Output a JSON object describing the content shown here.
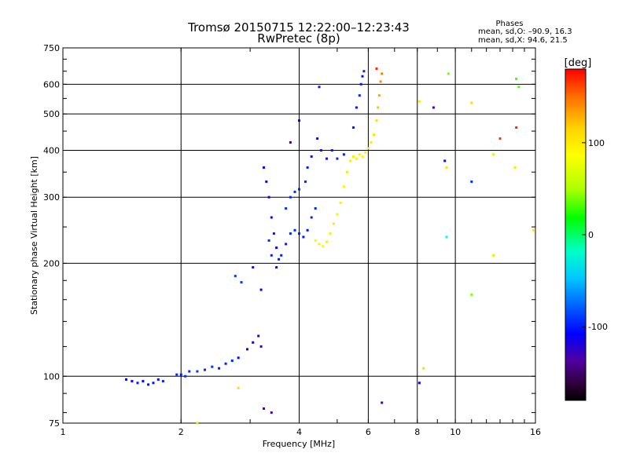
{
  "chart_data": {
    "type": "scatter",
    "title": "Tromsø 20150715 12:22:00–12:23:43",
    "subtitle": "RwPretec (8p)",
    "info": {
      "heading": "Phases",
      "line1": "mean, sd,O: –90.9, 16.3",
      "line2": "mean, sd,X:  94.6, 21.5"
    },
    "xlabel": "Frequency [MHz]",
    "ylabel": "Stationary phase Virtual Height [km]",
    "x_scale": "log2",
    "y_scale": "log",
    "xlim": [
      1,
      16
    ],
    "ylim": [
      75,
      750
    ],
    "x_ticks": [
      1,
      2,
      4,
      6,
      8,
      10,
      16
    ],
    "y_ticks": [
      75,
      100,
      200,
      300,
      400,
      500,
      600,
      750
    ],
    "grid": true,
    "colorbar": {
      "label": "[deg]",
      "range": [
        -180,
        180
      ],
      "ticks": [
        100,
        0,
        -100
      ]
    },
    "series": [
      {
        "mode": "O",
        "phase_mean": -90.9,
        "points": [
          [
            1.45,
            98,
            -105
          ],
          [
            1.5,
            97,
            -110
          ],
          [
            1.55,
            96,
            -100
          ],
          [
            1.6,
            97,
            -108
          ],
          [
            1.65,
            95,
            -104
          ],
          [
            1.7,
            96,
            -102
          ],
          [
            1.75,
            98,
            -100
          ],
          [
            1.8,
            97,
            -98
          ],
          [
            1.95,
            101,
            -95
          ],
          [
            2.0,
            101,
            -100
          ],
          [
            2.05,
            100,
            -92
          ],
          [
            2.1,
            103,
            -96
          ],
          [
            2.2,
            103,
            -90
          ],
          [
            2.3,
            104,
            -95
          ],
          [
            2.4,
            106,
            -92
          ],
          [
            2.5,
            105,
            -100
          ],
          [
            2.6,
            108,
            -98
          ],
          [
            2.7,
            110,
            -96
          ],
          [
            2.8,
            112,
            -105
          ],
          [
            2.75,
            185,
            -88
          ],
          [
            2.85,
            178,
            -92
          ],
          [
            3.05,
            195,
            -120
          ],
          [
            3.2,
            170,
            -110
          ],
          [
            2.95,
            118,
            -115
          ],
          [
            3.05,
            123,
            -112
          ],
          [
            3.15,
            128,
            -120
          ],
          [
            3.2,
            120,
            -125
          ],
          [
            3.25,
            82,
            -135
          ],
          [
            3.4,
            80,
            -140
          ],
          [
            3.25,
            360,
            -110
          ],
          [
            3.3,
            330,
            -112
          ],
          [
            3.35,
            300,
            -115
          ],
          [
            3.4,
            265,
            -105
          ],
          [
            3.45,
            240,
            -100
          ],
          [
            3.5,
            220,
            -108
          ],
          [
            3.55,
            205,
            -102
          ],
          [
            3.35,
            230,
            -95
          ],
          [
            3.4,
            210,
            -98
          ],
          [
            3.5,
            195,
            -104
          ],
          [
            3.6,
            210,
            -96
          ],
          [
            3.7,
            225,
            -100
          ],
          [
            3.8,
            240,
            -94
          ],
          [
            3.9,
            245,
            -98
          ],
          [
            4.0,
            240,
            -96
          ],
          [
            4.1,
            235,
            -100
          ],
          [
            4.2,
            245,
            -102
          ],
          [
            4.3,
            265,
            -98
          ],
          [
            4.4,
            280,
            -95
          ],
          [
            3.7,
            280,
            -92
          ],
          [
            3.8,
            300,
            -94
          ],
          [
            3.9,
            310,
            -96
          ],
          [
            4.0,
            315,
            -98
          ],
          [
            4.15,
            330,
            -94
          ],
          [
            4.2,
            360,
            -100
          ],
          [
            4.3,
            385,
            -104
          ],
          [
            4.45,
            430,
            -106
          ],
          [
            4.55,
            400,
            -102
          ],
          [
            4.7,
            380,
            -100
          ],
          [
            4.85,
            400,
            -98
          ],
          [
            5.0,
            380,
            -96
          ],
          [
            5.2,
            390,
            -100
          ],
          [
            5.5,
            460,
            -98
          ],
          [
            5.6,
            520,
            -102
          ],
          [
            5.7,
            560,
            -96
          ],
          [
            5.75,
            600,
            -100
          ],
          [
            5.8,
            630,
            -104
          ],
          [
            5.85,
            650,
            -98
          ],
          [
            4.5,
            590,
            -100
          ],
          [
            4.0,
            480,
            -110
          ],
          [
            3.8,
            420,
            -150
          ],
          [
            8.8,
            520,
            -130
          ],
          [
            9.4,
            375,
            -105
          ],
          [
            11.0,
            330,
            -95
          ],
          [
            8.1,
            96,
            -110
          ],
          [
            6.5,
            85,
            -140
          ]
        ]
      },
      {
        "mode": "X",
        "phase_mean": 94.6,
        "points": [
          [
            4.4,
            230,
            95
          ],
          [
            4.5,
            225,
            100
          ],
          [
            4.6,
            222,
            92
          ],
          [
            4.7,
            228,
            98
          ],
          [
            4.8,
            240,
            96
          ],
          [
            4.9,
            255,
            100
          ],
          [
            5.0,
            270,
            94
          ],
          [
            5.1,
            290,
            98
          ],
          [
            5.2,
            320,
            95
          ],
          [
            5.3,
            350,
            102
          ],
          [
            5.4,
            375,
            96
          ],
          [
            5.5,
            385,
            100
          ],
          [
            5.6,
            380,
            92
          ],
          [
            5.7,
            390,
            98
          ],
          [
            5.8,
            385,
            94
          ],
          [
            5.9,
            395,
            100
          ],
          [
            6.0,
            405,
            96
          ],
          [
            6.1,
            420,
            102
          ],
          [
            6.2,
            440,
            105
          ],
          [
            6.3,
            480,
            110
          ],
          [
            6.35,
            520,
            120
          ],
          [
            6.4,
            560,
            130
          ],
          [
            6.45,
            610,
            140
          ],
          [
            6.5,
            640,
            145
          ],
          [
            2.8,
            93,
            110
          ],
          [
            8.3,
            105,
            110
          ],
          [
            9.5,
            360,
            105
          ],
          [
            11.0,
            535,
            110
          ],
          [
            12.5,
            390,
            100
          ],
          [
            14.2,
            360,
            105
          ],
          [
            15.8,
            245,
            100
          ],
          [
            2.2,
            75,
            105
          ],
          [
            9.6,
            640,
            40
          ],
          [
            14.3,
            620,
            30
          ],
          [
            14.5,
            590,
            35
          ],
          [
            13.0,
            430,
            165
          ],
          [
            14.3,
            460,
            170
          ],
          [
            6.3,
            660,
            170
          ],
          [
            9.5,
            235,
            -20
          ],
          [
            11.0,
            165,
            40
          ],
          [
            12.5,
            210,
            100
          ],
          [
            8.1,
            540,
            100
          ]
        ]
      }
    ]
  }
}
